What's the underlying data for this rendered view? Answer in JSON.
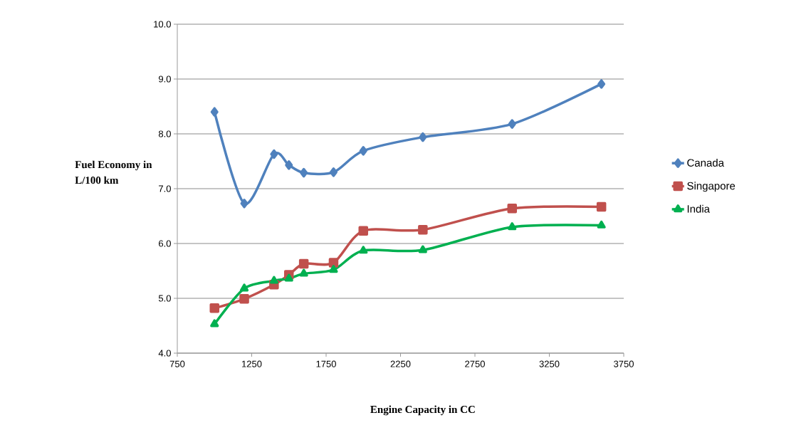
{
  "chart_data": {
    "type": "line",
    "xlabel": "Engine Capacity  in CC",
    "ylabel": "Fuel Economy  in L/100 km",
    "x": [
      1000,
      1200,
      1400,
      1500,
      1600,
      1800,
      2000,
      2400,
      3000,
      3600
    ],
    "series": [
      {
        "name": "Canada",
        "color": "#4f81bd",
        "marker": "diamond",
        "values": [
          8.4,
          6.73,
          7.63,
          7.43,
          7.29,
          7.3,
          7.69,
          7.94,
          8.18,
          8.91
        ]
      },
      {
        "name": "Singapore",
        "color": "#c0504d",
        "marker": "square",
        "values": [
          4.82,
          4.99,
          5.25,
          5.43,
          5.63,
          5.65,
          6.23,
          6.25,
          6.64,
          6.67
        ]
      },
      {
        "name": "India",
        "color": "#00b050",
        "marker": "triangle",
        "values": [
          4.53,
          5.18,
          5.32,
          5.36,
          5.45,
          5.52,
          5.87,
          5.88,
          6.3,
          6.33
        ]
      }
    ],
    "xlim": [
      750,
      3750
    ],
    "xticks": [
      750,
      1250,
      1750,
      2250,
      2750,
      3250,
      3750
    ],
    "ylim": [
      4.0,
      10.0
    ],
    "yticks": [
      {
        "value": 4,
        "label": "4.0"
      },
      {
        "value": 5,
        "label": "5.0"
      },
      {
        "value": 6,
        "label": "6.0"
      },
      {
        "value": 7,
        "label": "7.0"
      },
      {
        "value": 8,
        "label": "8.0"
      },
      {
        "value": 9,
        "label": "9.0"
      },
      {
        "value": 10,
        "label": "10.0"
      }
    ],
    "grid": "y",
    "legend": "right",
    "line_style": "solid"
  }
}
